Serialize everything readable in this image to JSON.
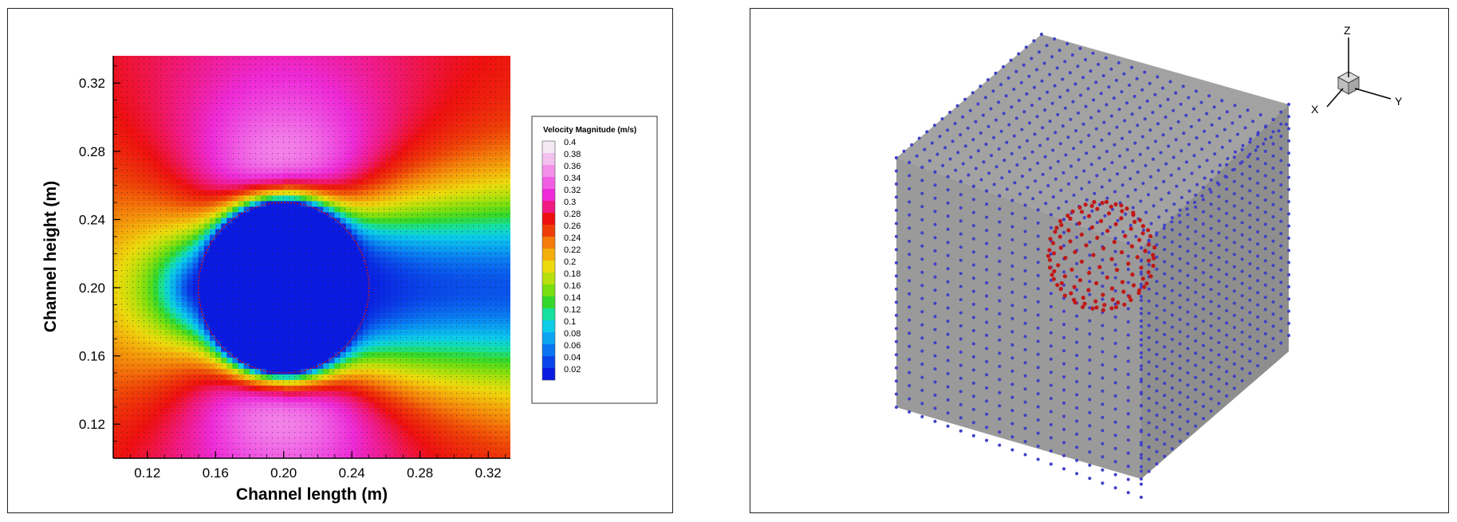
{
  "chart_data": [
    {
      "type": "heatmap",
      "title": "",
      "xlabel": "Channel length (m)",
      "ylabel": "Channel height (m)",
      "xlim": [
        0.1,
        0.333
      ],
      "ylim": [
        0.1,
        0.336
      ],
      "x_ticks": [
        "0.12",
        "0.16",
        "0.20",
        "0.24",
        "0.28",
        "0.32"
      ],
      "y_ticks": [
        "0.12",
        "0.16",
        "0.20",
        "0.24",
        "0.28",
        "0.32"
      ],
      "cylinder": {
        "center_x": 0.2,
        "center_y": 0.2,
        "radius": 0.05
      },
      "legend": {
        "title": "Velocity Magnitude (m/s)",
        "levels": [
          "0.4",
          "0.38",
          "0.36",
          "0.34",
          "0.32",
          "0.3",
          "0.28",
          "0.26",
          "0.24",
          "0.22",
          "0.2",
          "0.18",
          "0.16",
          "0.14",
          "0.12",
          "0.1",
          "0.08",
          "0.06",
          "0.04",
          "0.02"
        ],
        "colors": [
          "#f4e8f4",
          "#f3c0ef",
          "#f490ea",
          "#f05ee4",
          "#ee2ad8",
          "#f01a82",
          "#ee1010",
          "#ee3e08",
          "#f37c0a",
          "#f3ae0c",
          "#ecda0c",
          "#b8e00c",
          "#78de10",
          "#34d82c",
          "#16e0a0",
          "#0ccce8",
          "#0aa4f0",
          "#0a74f0",
          "#0a44e8",
          "#0a1ae0"
        ],
        "placement": "right"
      },
      "legend_title": "Velocity Magnitude (m/s)"
    },
    {
      "type": "diagram-3d",
      "description_free": true,
      "axes_labels": [
        "Z",
        "Y",
        "X"
      ],
      "lattice_color": "#4040c8",
      "sphere_point_color": "#c01818",
      "face_color": "#9a9a9a"
    }
  ],
  "triad": {
    "z": "Z",
    "y": "Y",
    "x": "X"
  }
}
